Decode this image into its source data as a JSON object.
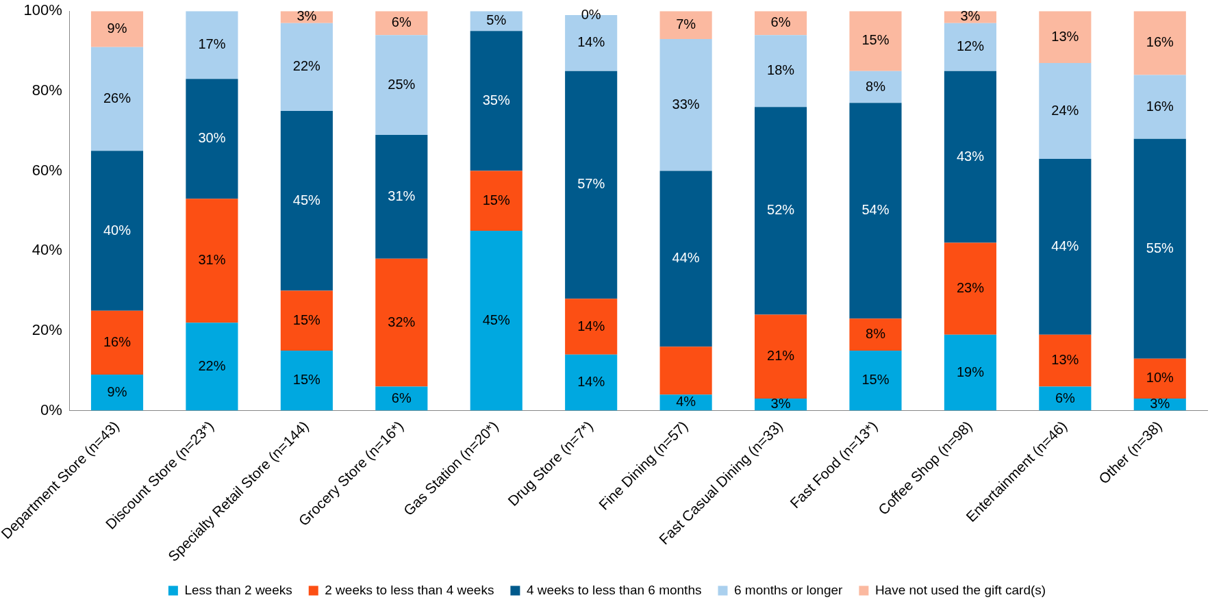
{
  "chart_data": {
    "type": "bar",
    "stacked": true,
    "categories": [
      "Department Store (n=43)",
      "Discount Store (n=23*)",
      "Specialty Retail Store (n=144)",
      "Grocery Store (n=16*)",
      "Gas Station (n=20*)",
      "Drug Store (n=7*)",
      "Fine Dining (n=57)",
      "Fast Casual Dining (n=33)",
      "Fast Food (n=13*)",
      "Coffee Shop (n=98)",
      "Entertainment (n=46)",
      "Other (n=38)"
    ],
    "series": [
      {
        "name": "Less than 2 weeks",
        "color": "#00a8e0",
        "values": [
          9,
          22,
          15,
          6,
          45,
          14,
          4,
          3,
          15,
          19,
          6,
          3
        ],
        "value_labels": [
          "9%",
          "22%",
          "15%",
          "6%",
          "45%",
          "14%",
          "4%",
          "3%",
          "15%",
          "19%",
          "6%",
          "3%"
        ]
      },
      {
        "name": "2 weeks to less than 4 weeks",
        "color": "#fc4f14",
        "values": [
          16,
          31,
          15,
          32,
          15,
          14,
          12,
          21,
          8,
          23,
          13,
          10
        ],
        "value_labels": [
          "16%",
          "31%",
          "15%",
          "32%",
          "15%",
          "14%",
          null,
          "21%",
          "8%",
          "23%",
          "13%",
          "10%"
        ]
      },
      {
        "name": "4 weeks to less than 6 months",
        "color": "#005a8c",
        "values": [
          40,
          30,
          45,
          31,
          35,
          57,
          44,
          52,
          54,
          43,
          44,
          55
        ],
        "value_labels": [
          "40%",
          "30%",
          "45%",
          "31%",
          "35%",
          "57%",
          "44%",
          "52%",
          "54%",
          "43%",
          "44%",
          "55%"
        ]
      },
      {
        "name": "6 months or longer",
        "color": "#aad0ee",
        "values": [
          26,
          17,
          22,
          25,
          5,
          14,
          33,
          18,
          8,
          12,
          24,
          16
        ],
        "value_labels": [
          "26%",
          "17%",
          "22%",
          "25%",
          "5%",
          "14%",
          "33%",
          "18%",
          "8%",
          "12%",
          "24%",
          "16%"
        ]
      },
      {
        "name": "Have not used the gift card(s)",
        "color": "#fbb9a0",
        "values": [
          9,
          0,
          3,
          6,
          0,
          0,
          7,
          6,
          15,
          3,
          13,
          16
        ],
        "value_labels": [
          "9%",
          null,
          "3%",
          "6%",
          null,
          "0%",
          "7%",
          "6%",
          "15%",
          "3%",
          "13%",
          "16%"
        ]
      }
    ],
    "ylim": [
      0,
      100
    ],
    "yticks": [
      {
        "value": 0,
        "label": "0%"
      },
      {
        "value": 20,
        "label": "20%"
      },
      {
        "value": 40,
        "label": "40%"
      },
      {
        "value": 60,
        "label": "60%"
      },
      {
        "value": 80,
        "label": "80%"
      },
      {
        "value": 100,
        "label": "100%"
      }
    ],
    "grid": false,
    "legend": "bottom"
  }
}
